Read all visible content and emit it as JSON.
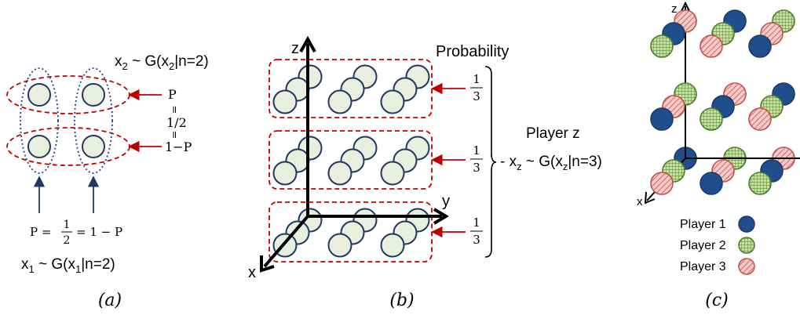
{
  "colors": {
    "token_fill": "#e8efdc",
    "token_stroke": "#1f3864",
    "red_dash": "#c00000",
    "blue_dot": "#1f3f8f",
    "player1": "#1f4e8c",
    "player2_fill": "#c5e0a5",
    "player2_grid": "#4f7a28",
    "player3_fill": "#f6c9c9",
    "player3_hatch": "#c0504d"
  },
  "panel_a": {
    "caption": "(a)",
    "x2_label": "x",
    "x2_sub": "2",
    "x2_rest": " ~ G(x",
    "x2_sub2": "2",
    "x2_tail": "|n=2)",
    "p_top": "P",
    "eq_top": "=",
    "half": "1/2",
    "eq_bottom": "=",
    "one_minus_p": "1−P",
    "p_formula_left": "P =",
    "p_frac_num": "1",
    "p_frac_den": "2",
    "p_formula_right": "= 1 − P",
    "x1_label": "x",
    "x1_sub": "1",
    "x1_rest": " ~ G(x",
    "x1_sub2": "1",
    "x1_tail": "|n=2)"
  },
  "panel_b": {
    "caption": "(b)",
    "axis_z": "z",
    "axis_y": "y",
    "axis_x": "x",
    "probability": "Probability",
    "frac_num": "1",
    "frac_den": "3",
    "player_z": "Player z",
    "xz_label": "x",
    "xz_sub": "z",
    "xz_rest": " ~ G(x",
    "xz_sub2": "z",
    "xz_tail": "|n=3)"
  },
  "panel_c": {
    "caption": "(c)",
    "axis_z": "z",
    "axis_x": "x",
    "legend": [
      "Player 1",
      "Player 2",
      "Player 3"
    ]
  }
}
